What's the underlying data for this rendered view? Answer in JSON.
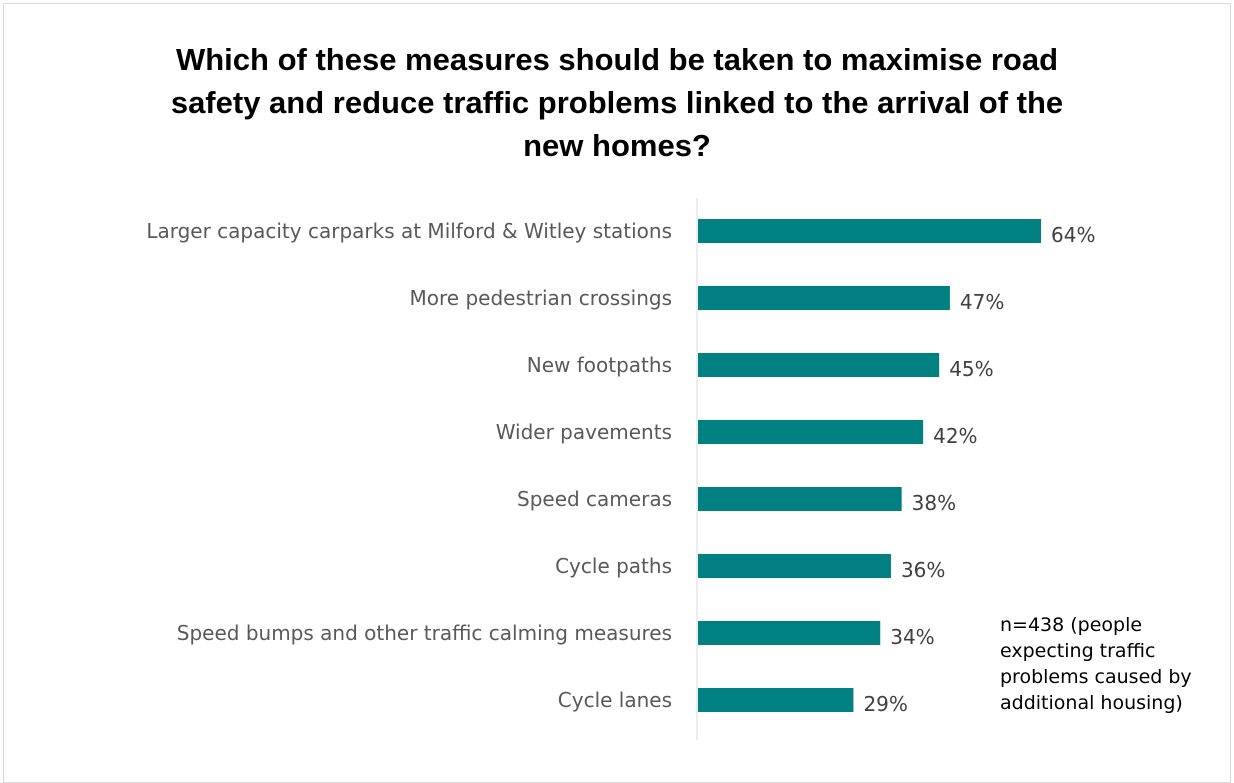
{
  "chart_data": {
    "type": "bar",
    "orientation": "horizontal",
    "title": "Which of these measures should be taken to maximise road safety and reduce traffic problems linked to the arrival of the new homes?",
    "title_lines": [
      "Which of these measures should be taken to maximise road",
      "safety and reduce traffic problems linked to the arrival of the",
      "new homes?"
    ],
    "categories": [
      "Larger capacity carparks at Milford & Witley stations",
      "More pedestrian crossings",
      "New footpaths",
      "Wider pavements",
      "Speed cameras",
      "Cycle paths",
      "Speed bumps and other traffic calming measures",
      "Cycle lanes"
    ],
    "values": [
      64,
      47,
      45,
      42,
      38,
      36,
      34,
      29
    ],
    "value_labels": [
      "64%",
      "47%",
      "45%",
      "42%",
      "38%",
      "36%",
      "34%",
      "29%"
    ],
    "unit": "%",
    "xlim": [
      0,
      70
    ],
    "grid": false,
    "bar_color": "#008080",
    "annotation": "n=438 (people expecting traffic problems caused by additional housing)"
  }
}
